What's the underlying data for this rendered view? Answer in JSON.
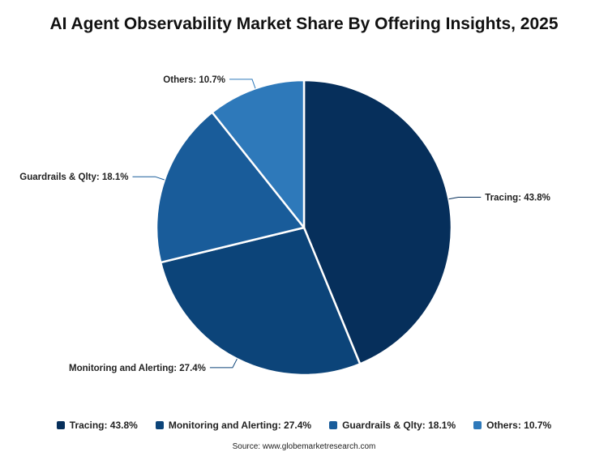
{
  "chart_data": {
    "type": "pie",
    "title": "AI Agent Observability Market Share By Offering Insights, 2025",
    "unit": "%",
    "slices": [
      {
        "label": "Tracing",
        "value": 43.8,
        "color": "#062f5b",
        "callout": "Tracing: 43.8%"
      },
      {
        "label": "Monitoring and Alerting",
        "value": 27.4,
        "color": "#0c4479",
        "callout": "Monitoring and Alerting: 27.4%"
      },
      {
        "label": "Guardrails & Qlty",
        "value": 18.1,
        "color": "#195c9a",
        "callout": "Guardrails & Qlty: 18.1%"
      },
      {
        "label": "Others",
        "value": 10.7,
        "color": "#2e79ba",
        "callout": "Others: 10.7%"
      }
    ],
    "legend_position": "bottom",
    "start_angle": "top, clockwise"
  },
  "source": "Source: www.globemarketresearch.com"
}
